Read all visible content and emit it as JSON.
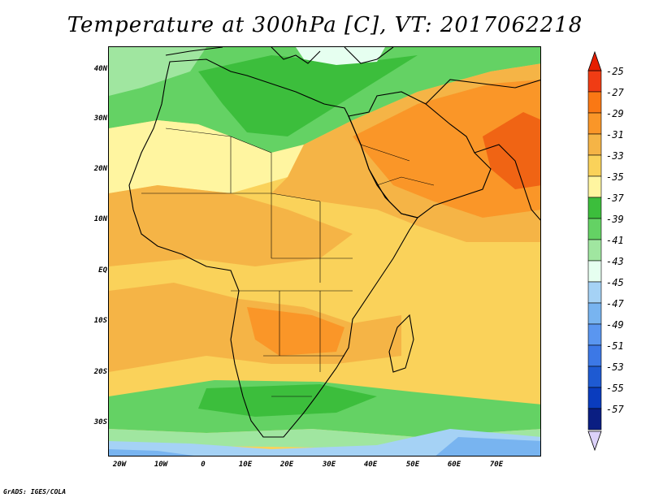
{
  "title": "Temperature at 300hPa [C], VT: 2017062218",
  "credit": "GrADS: IGES/COLA",
  "axes": {
    "latitude_labels": [
      "40N",
      "30N",
      "20N",
      "10N",
      "EQ",
      "10S",
      "20S",
      "30S"
    ],
    "longitude_labels": [
      "20W",
      "10W",
      "0",
      "10E",
      "20E",
      "30E",
      "40E",
      "50E",
      "60E",
      "70E"
    ]
  },
  "colorbar": {
    "labels": [
      "-25",
      "-27",
      "-29",
      "-31",
      "-33",
      "-35",
      "-37",
      "-39",
      "-41",
      "-43",
      "-45",
      "-47",
      "-49",
      "-51",
      "-53",
      "-55",
      "-57"
    ],
    "colors": [
      "#f03c14",
      "#fa7814",
      "#fa9628",
      "#f5b446",
      "#fad25a",
      "#fff5a0",
      "#3cbe3c",
      "#64d264",
      "#a0e6a0",
      "#e6fff0",
      "#a5d2f5",
      "#78b4f0",
      "#5a96f0",
      "#3c78e6",
      "#1e5ad2",
      "#0a3cbe",
      "#0a1e82"
    ],
    "top_arrow_color": "#e61e00",
    "bottom_arrow_color": "#dcd2fa"
  },
  "map": {
    "region": "Africa, Middle East and western South Asia",
    "extent_lon": [
      -22,
      80
    ],
    "extent_lat": [
      -37,
      45
    ],
    "colors": {
      "warm_core": "#f06414",
      "warm": "#fa9628",
      "warmish": "#f5b446",
      "mild": "#fad25a",
      "pale": "#fff5a0",
      "green": "#3cbe3c",
      "light_green": "#64d264",
      "pale_green": "#a0e6a0",
      "pale_cyan": "#e6fff0",
      "light_blue": "#a5d2f5",
      "blue": "#78b4f0"
    }
  }
}
